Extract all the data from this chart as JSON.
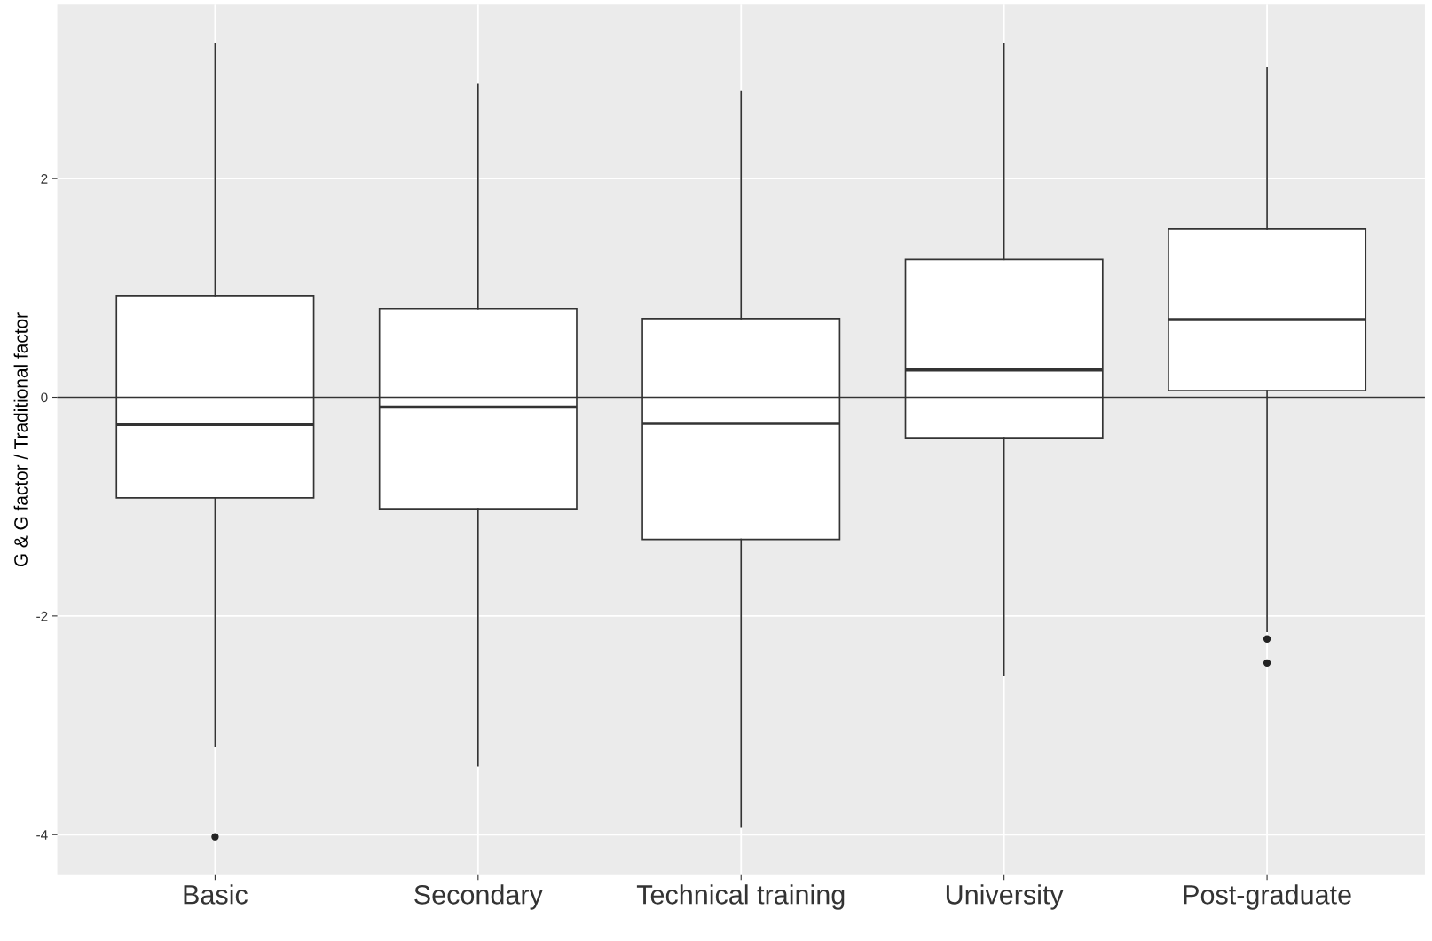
{
  "chart_data": {
    "type": "box",
    "ylabel": "G & G factor / Traditional factor",
    "categories": [
      "Basic",
      "Secondary",
      "Technical training",
      "University",
      "Post-graduate"
    ],
    "boxes": [
      {
        "low": -3.19,
        "q1": -0.92,
        "median": -0.25,
        "q3": 0.93,
        "high": 3.23,
        "outliers": [
          -4.02
        ]
      },
      {
        "low": -3.37,
        "q1": -1.02,
        "median": -0.09,
        "q3": 0.81,
        "high": 2.86
      },
      {
        "low": -3.93,
        "q1": -1.3,
        "median": -0.24,
        "q3": 0.72,
        "high": 2.8
      },
      {
        "low": -2.54,
        "q1": -0.37,
        "median": 0.25,
        "q3": 1.26,
        "high": 3.23
      },
      {
        "low": -2.14,
        "q1": 0.06,
        "median": 0.71,
        "q3": 1.54,
        "high": 3.01,
        "outliers": [
          -2.21,
          -2.43
        ]
      }
    ],
    "ylim": [
      -4.37,
      3.59
    ],
    "yticks": [
      -4,
      -2,
      0,
      2
    ],
    "grid": true,
    "ref_lines": [
      {
        "axis": "y",
        "value": 0,
        "color": "#333333"
      }
    ]
  }
}
